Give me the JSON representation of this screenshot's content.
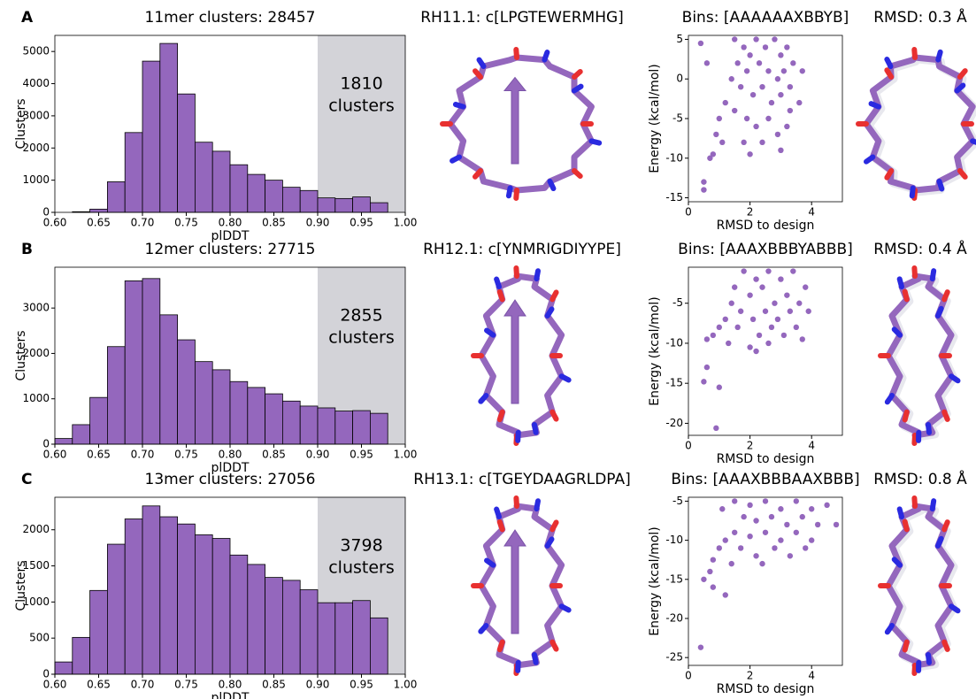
{
  "chart_data": [
    {
      "type": "histogram",
      "panel_label": "A",
      "title": "11mer clusters: 28457",
      "xlabel": "plDDT",
      "ylabel": "Clusters",
      "color": "#9467bd",
      "bins": [
        0.62,
        0.64,
        0.66,
        0.68,
        0.7,
        0.72,
        0.74,
        0.76,
        0.78,
        0.8,
        0.82,
        0.84,
        0.86,
        0.88,
        0.9,
        0.92,
        0.94,
        0.96,
        0.98
      ],
      "values": [
        20,
        100,
        950,
        2480,
        4700,
        5250,
        3680,
        2180,
        1900,
        1480,
        1180,
        1000,
        780,
        680,
        450,
        430,
        480,
        300
      ],
      "xlim": [
        0.6,
        1.0
      ],
      "ylim": [
        0,
        5500
      ],
      "xticks": [
        {
          "value": 0.6,
          "label": "0.60"
        },
        {
          "value": 0.65,
          "label": "0.65"
        },
        {
          "value": 0.7,
          "label": "0.70"
        },
        {
          "value": 0.75,
          "label": "0.75"
        },
        {
          "value": 0.8,
          "label": "0.80"
        },
        {
          "value": 0.85,
          "label": "0.85"
        },
        {
          "value": 0.9,
          "label": "0.90"
        },
        {
          "value": 0.95,
          "label": "0.95"
        },
        {
          "value": 1.0,
          "label": "1.00"
        }
      ],
      "yticks": [
        0,
        1000,
        2000,
        3000,
        4000,
        5000
      ],
      "highlight": [
        0.9,
        1.0
      ],
      "highlight_color": "#d3d3d8",
      "annotation": [
        "1810",
        "clusters"
      ]
    },
    {
      "type": "structure",
      "title": "RH11.1: c[LPGTEWERMHG]"
    },
    {
      "type": "scatter",
      "title": "Bins: [AAAAAAXBBYB]",
      "xlabel": "RMSD to design",
      "ylabel": "Energy (kcal/mol)",
      "color": "#9467bd",
      "x": [
        1.5,
        1.8,
        2,
        2.2,
        2.5,
        2.8,
        3,
        3.2,
        3.4,
        1.6,
        1.9,
        2.3,
        2.6,
        2.9,
        3.1,
        3.3,
        1.4,
        1.7,
        2.1,
        2.4,
        2.7,
        3,
        3.3,
        1.2,
        1.5,
        1.9,
        2.2,
        2.6,
        2.9,
        3.2,
        1.0,
        0.9,
        1.1,
        1.8,
        2.4,
        3,
        0.7,
        0.8,
        0.5,
        0.5,
        0.4,
        0.6,
        3.6,
        3.7,
        2
      ],
      "y": [
        5,
        4,
        3,
        5,
        4,
        5,
        3,
        4,
        2,
        2,
        1,
        2,
        1,
        0,
        1,
        -1,
        0,
        -1,
        -2,
        -1,
        -3,
        -2,
        -4,
        -3,
        -4,
        -5,
        -6,
        -5,
        -7,
        -6,
        -5,
        -7,
        -8,
        -8,
        -8,
        -9,
        -10,
        -9.5,
        -13,
        -14,
        4.5,
        2,
        -3,
        1,
        -9.5
      ],
      "xlim": [
        0,
        5
      ],
      "ylim": [
        -15.5,
        5.5
      ],
      "xticks": [
        0,
        2,
        4
      ],
      "yticks": [
        -15,
        -10,
        -5,
        0,
        5
      ]
    },
    {
      "type": "structure",
      "title": "RMSD: 0.3 Å"
    },
    {
      "type": "histogram",
      "panel_label": "B",
      "title": "12mer clusters: 27715",
      "xlabel": "plDDT",
      "ylabel": "Clusters",
      "color": "#9467bd",
      "bins": [
        0.6,
        0.62,
        0.64,
        0.66,
        0.68,
        0.7,
        0.72,
        0.74,
        0.76,
        0.78,
        0.8,
        0.82,
        0.84,
        0.86,
        0.88,
        0.9,
        0.92,
        0.94,
        0.96,
        0.98
      ],
      "values": [
        125,
        430,
        1030,
        2150,
        3600,
        3650,
        2850,
        2300,
        1820,
        1640,
        1380,
        1250,
        1110,
        950,
        840,
        800,
        730,
        740,
        680
      ],
      "xlim": [
        0.6,
        1.0
      ],
      "ylim": [
        0,
        3900
      ],
      "xticks": [
        {
          "value": 0.6,
          "label": "0.60"
        },
        {
          "value": 0.65,
          "label": "0.65"
        },
        {
          "value": 0.7,
          "label": "0.70"
        },
        {
          "value": 0.75,
          "label": "0.75"
        },
        {
          "value": 0.8,
          "label": "0.80"
        },
        {
          "value": 0.85,
          "label": "0.85"
        },
        {
          "value": 0.9,
          "label": "0.90"
        },
        {
          "value": 0.95,
          "label": "0.95"
        },
        {
          "value": 1.0,
          "label": "1.00"
        }
      ],
      "yticks": [
        0,
        1000,
        2000,
        3000
      ],
      "highlight": [
        0.9,
        1.0
      ],
      "highlight_color": "#d3d3d8",
      "annotation": [
        "2855",
        "clusters"
      ]
    },
    {
      "type": "structure",
      "title": "RH12.1: c[YNMRIGDIYYPE]"
    },
    {
      "type": "scatter",
      "title": "Bins: [AAAXBBBYABBB]",
      "xlabel": "RMSD to design",
      "ylabel": "Energy (kcal/mol)",
      "color": "#9467bd",
      "x": [
        1.8,
        2.2,
        2.6,
        3,
        3.4,
        3.8,
        1.5,
        2,
        2.4,
        2.8,
        3.2,
        3.6,
        1.7,
        2.1,
        2.5,
        2.9,
        3.3,
        1.4,
        1.2,
        1.0,
        1.6,
        2.3,
        2.7,
        3.1,
        3.5,
        0.8,
        0.6,
        1.3,
        2,
        2.6,
        3.7,
        0.6,
        0.5,
        1.0,
        0.9,
        2.2,
        3.9
      ],
      "y": [
        -1,
        -2,
        -1,
        -2,
        -1,
        -3,
        -3,
        -4,
        -3,
        -5,
        -4,
        -5,
        -6,
        -7,
        -6,
        -7,
        -6,
        -5,
        -7,
        -8,
        -8,
        -9,
        -8,
        -9,
        -8,
        -9,
        -9.5,
        -10,
        -10.5,
        -10,
        -9.5,
        -13,
        -14.8,
        -15.5,
        -20.6,
        -11,
        -6
      ],
      "xlim": [
        0,
        5
      ],
      "ylim": [
        -21.5,
        -0.5
      ],
      "xticks": [
        0,
        2,
        4
      ],
      "yticks": [
        -20,
        -15,
        -10,
        -5
      ]
    },
    {
      "type": "structure",
      "title": "RMSD: 0.4 Å"
    },
    {
      "type": "histogram",
      "panel_label": "C",
      "title": "13mer clusters: 27056",
      "xlabel": "plDDT",
      "ylabel": "Clusters",
      "color": "#9467bd",
      "bins": [
        0.6,
        0.62,
        0.64,
        0.66,
        0.68,
        0.7,
        0.72,
        0.74,
        0.76,
        0.78,
        0.8,
        0.82,
        0.84,
        0.86,
        0.88,
        0.9,
        0.92,
        0.94,
        0.96,
        0.98
      ],
      "values": [
        170,
        510,
        1160,
        1800,
        2150,
        2330,
        2180,
        2080,
        1930,
        1880,
        1650,
        1520,
        1340,
        1300,
        1170,
        990,
        990,
        1020,
        780
      ],
      "xlim": [
        0.6,
        1.0
      ],
      "ylim": [
        0,
        2450
      ],
      "xticks": [
        {
          "value": 0.6,
          "label": "0.60"
        },
        {
          "value": 0.65,
          "label": "0.65"
        },
        {
          "value": 0.7,
          "label": "0.70"
        },
        {
          "value": 0.75,
          "label": "0.75"
        },
        {
          "value": 0.8,
          "label": "0.80"
        },
        {
          "value": 0.85,
          "label": "0.85"
        },
        {
          "value": 0.9,
          "label": "0.90"
        },
        {
          "value": 0.95,
          "label": "0.95"
        },
        {
          "value": 1.0,
          "label": "1.00"
        }
      ],
      "yticks": [
        0,
        500,
        1000,
        1500,
        2000
      ],
      "highlight": [
        0.9,
        1.0
      ],
      "highlight_color": "#d3d3d8",
      "annotation": [
        "3798",
        "clusters"
      ]
    },
    {
      "type": "structure",
      "title": "RH13.1: c[TGEYDAAGRLDPA]"
    },
    {
      "type": "scatter",
      "title": "Bins: [AAAXBBBAAXBBB]",
      "xlabel": "RMSD to design",
      "ylabel": "Energy (kcal/mol)",
      "color": "#9467bd",
      "x": [
        1.5,
        2,
        2.5,
        3,
        3.5,
        4,
        4.5,
        1.8,
        2.2,
        2.7,
        3.2,
        3.7,
        4.2,
        1.5,
        2,
        2.5,
        3,
        3.5,
        4,
        1.2,
        1.7,
        2.2,
        2.8,
        3.3,
        3.8,
        1.0,
        0.8,
        1.4,
        2.4,
        0.7,
        0.5,
        0.8,
        1.2,
        0.4,
        4.8,
        1.1
      ],
      "y": [
        -5,
        -5.5,
        -5,
        -6,
        -5,
        -6,
        -5.5,
        -7,
        -7.5,
        -7,
        -8,
        -7,
        -8,
        -9,
        -9.5,
        -9,
        -10,
        -9,
        -10,
        -10,
        -11,
        -12,
        -11,
        -12,
        -11,
        -11,
        -12.5,
        -13,
        -13,
        -14,
        -15,
        -16,
        -17,
        -23.7,
        -8,
        -6
      ],
      "xlim": [
        0,
        5
      ],
      "ylim": [
        -26,
        -4.5
      ],
      "xticks": [
        0,
        2,
        4
      ],
      "yticks": [
        -25,
        -20,
        -15,
        -10,
        -5
      ]
    },
    {
      "type": "structure",
      "title": "RMSD: 0.8 Å"
    }
  ]
}
